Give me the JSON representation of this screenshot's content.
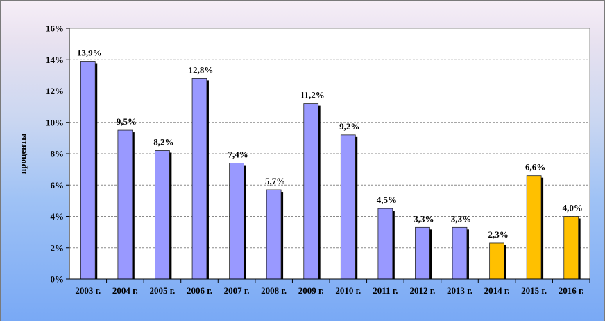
{
  "chart_data": {
    "type": "bar",
    "title": "",
    "xlabel": "",
    "ylabel": "проценты",
    "ylim": [
      0,
      16
    ],
    "yticks": [
      "0%",
      "2%",
      "4%",
      "6%",
      "8%",
      "10%",
      "12%",
      "14%",
      "16%"
    ],
    "grid": true,
    "categories": [
      "2003 г.",
      "2004 г.",
      "2005 г.",
      "2006 г.",
      "2007 г.",
      "2008 г.",
      "2009 г.",
      "2010 г.",
      "2011 г.",
      "2012 г.",
      "2013 г.",
      "2014 г.",
      "2015 г.",
      "2016 г."
    ],
    "values": [
      13.9,
      9.5,
      8.2,
      12.8,
      7.4,
      5.7,
      11.2,
      9.2,
      4.5,
      3.3,
      3.3,
      2.3,
      6.6,
      4.0
    ],
    "data_labels": [
      "13,9%",
      "9,5%",
      "8,2%",
      "12,8%",
      "7,4%",
      "5,7%",
      "11,2%",
      "9,2%",
      "4,5%",
      "3,3%",
      "3,3%",
      "2,3%",
      "6,6%",
      "4,0%"
    ],
    "bar_colors": [
      "#9999ff",
      "#9999ff",
      "#9999ff",
      "#9999ff",
      "#9999ff",
      "#9999ff",
      "#9999ff",
      "#9999ff",
      "#9999ff",
      "#9999ff",
      "#9999ff",
      "#ffc000",
      "#ffc000",
      "#ffc000"
    ]
  }
}
